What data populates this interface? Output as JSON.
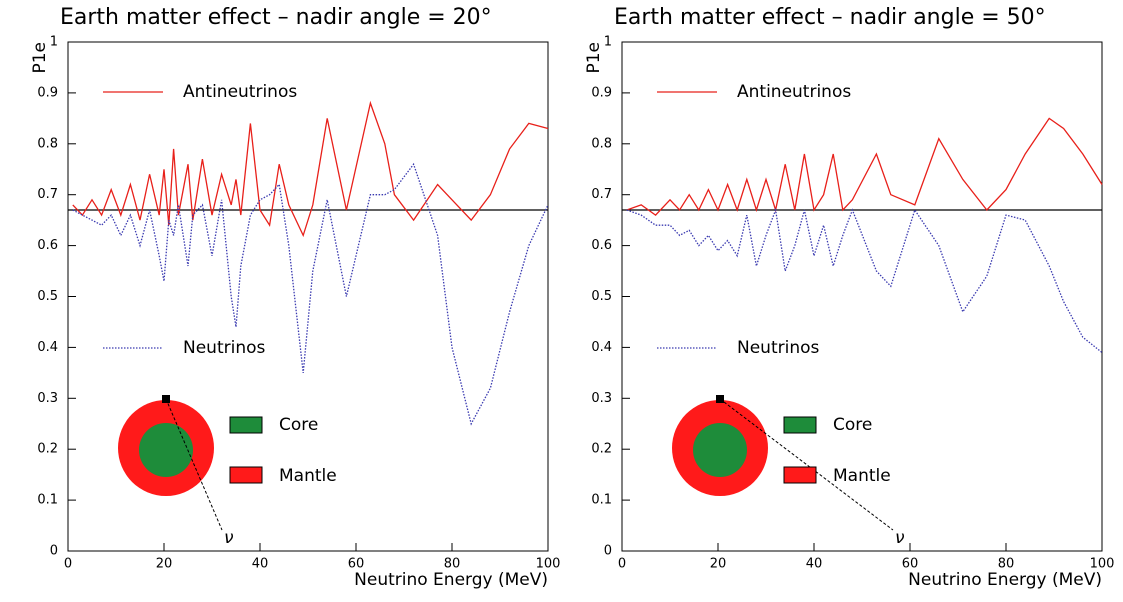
{
  "chart_data": [
    {
      "type": "line",
      "title": "Earth matter effect – nadir angle = 20°",
      "xlabel": "Neutrino Energy (MeV)",
      "ylabel": "P1e",
      "xlim": [
        0,
        100
      ],
      "ylim": [
        0,
        1
      ],
      "xticks": [
        0,
        20,
        40,
        60,
        80,
        100
      ],
      "yticks": [
        0,
        0.1,
        0.2,
        0.3,
        0.4,
        0.5,
        0.6,
        0.7,
        0.8,
        0.9,
        1
      ],
      "reference_line": 0.67,
      "x": [
        1,
        3,
        5,
        7,
        9,
        11,
        13,
        15,
        17,
        19,
        20,
        21,
        22,
        23,
        25,
        26,
        28,
        30,
        32,
        34,
        35,
        36,
        38,
        40,
        42,
        44,
        46,
        49,
        51,
        54,
        58,
        63,
        66,
        68,
        72,
        77,
        80,
        84,
        88,
        92,
        96,
        100
      ],
      "series": [
        {
          "name": "Antineutrinos",
          "color": "#e8201a",
          "values": [
            0.68,
            0.66,
            0.69,
            0.66,
            0.71,
            0.66,
            0.72,
            0.65,
            0.74,
            0.66,
            0.75,
            0.64,
            0.79,
            0.66,
            0.76,
            0.65,
            0.77,
            0.66,
            0.74,
            0.68,
            0.73,
            0.66,
            0.84,
            0.67,
            0.64,
            0.76,
            0.68,
            0.62,
            0.68,
            0.85,
            0.67,
            0.88,
            0.8,
            0.7,
            0.65,
            0.72,
            0.69,
            0.65,
            0.7,
            0.79,
            0.84,
            0.83
          ]
        },
        {
          "name": "Neutrinos",
          "color": "#3a3ab0",
          "values": [
            0.67,
            0.66,
            0.65,
            0.64,
            0.66,
            0.62,
            0.66,
            0.6,
            0.67,
            0.58,
            0.53,
            0.65,
            0.62,
            0.68,
            0.56,
            0.66,
            0.68,
            0.58,
            0.69,
            0.5,
            0.44,
            0.56,
            0.66,
            0.69,
            0.7,
            0.72,
            0.6,
            0.35,
            0.55,
            0.69,
            0.5,
            0.7,
            0.7,
            0.71,
            0.76,
            0.62,
            0.4,
            0.25,
            0.32,
            0.47,
            0.6,
            0.68
          ]
        }
      ],
      "inset": {
        "core_label": "Core",
        "mantle_label": "Mantle",
        "nu_label": "ν",
        "core_color": "#1e8c3a",
        "mantle_color": "#ff1a1a"
      }
    },
    {
      "type": "line",
      "title": "Earth matter effect – nadir angle = 50°",
      "xlabel": "Neutrino Energy (MeV)",
      "ylabel": "P1e",
      "xlim": [
        0,
        100
      ],
      "ylim": [
        0,
        1
      ],
      "xticks": [
        0,
        20,
        40,
        60,
        80,
        100
      ],
      "yticks": [
        0,
        0.1,
        0.2,
        0.3,
        0.4,
        0.5,
        0.6,
        0.7,
        0.8,
        0.9,
        1
      ],
      "reference_line": 0.67,
      "x": [
        1,
        4,
        7,
        10,
        12,
        14,
        16,
        18,
        20,
        22,
        24,
        26,
        28,
        30,
        32,
        34,
        36,
        38,
        40,
        42,
        44,
        46,
        48,
        53,
        56,
        61,
        66,
        71,
        76,
        80,
        84,
        89,
        92,
        96,
        100
      ],
      "series": [
        {
          "name": "Antineutrinos",
          "color": "#e8201a",
          "values": [
            0.67,
            0.68,
            0.66,
            0.69,
            0.67,
            0.7,
            0.67,
            0.71,
            0.67,
            0.72,
            0.67,
            0.73,
            0.67,
            0.73,
            0.67,
            0.76,
            0.67,
            0.78,
            0.67,
            0.7,
            0.78,
            0.67,
            0.69,
            0.78,
            0.7,
            0.68,
            0.81,
            0.73,
            0.67,
            0.71,
            0.78,
            0.85,
            0.83,
            0.78,
            0.72
          ]
        },
        {
          "name": "Neutrinos",
          "color": "#3a3ab0",
          "values": [
            0.67,
            0.66,
            0.64,
            0.64,
            0.62,
            0.63,
            0.6,
            0.62,
            0.59,
            0.61,
            0.58,
            0.66,
            0.56,
            0.62,
            0.67,
            0.55,
            0.6,
            0.67,
            0.58,
            0.64,
            0.56,
            0.62,
            0.67,
            0.55,
            0.52,
            0.67,
            0.6,
            0.47,
            0.54,
            0.66,
            0.65,
            0.56,
            0.49,
            0.42,
            0.39
          ]
        }
      ],
      "inset": {
        "core_label": "Core",
        "mantle_label": "Mantle",
        "nu_label": "ν",
        "core_color": "#1e8c3a",
        "mantle_color": "#ff1a1a"
      }
    }
  ]
}
